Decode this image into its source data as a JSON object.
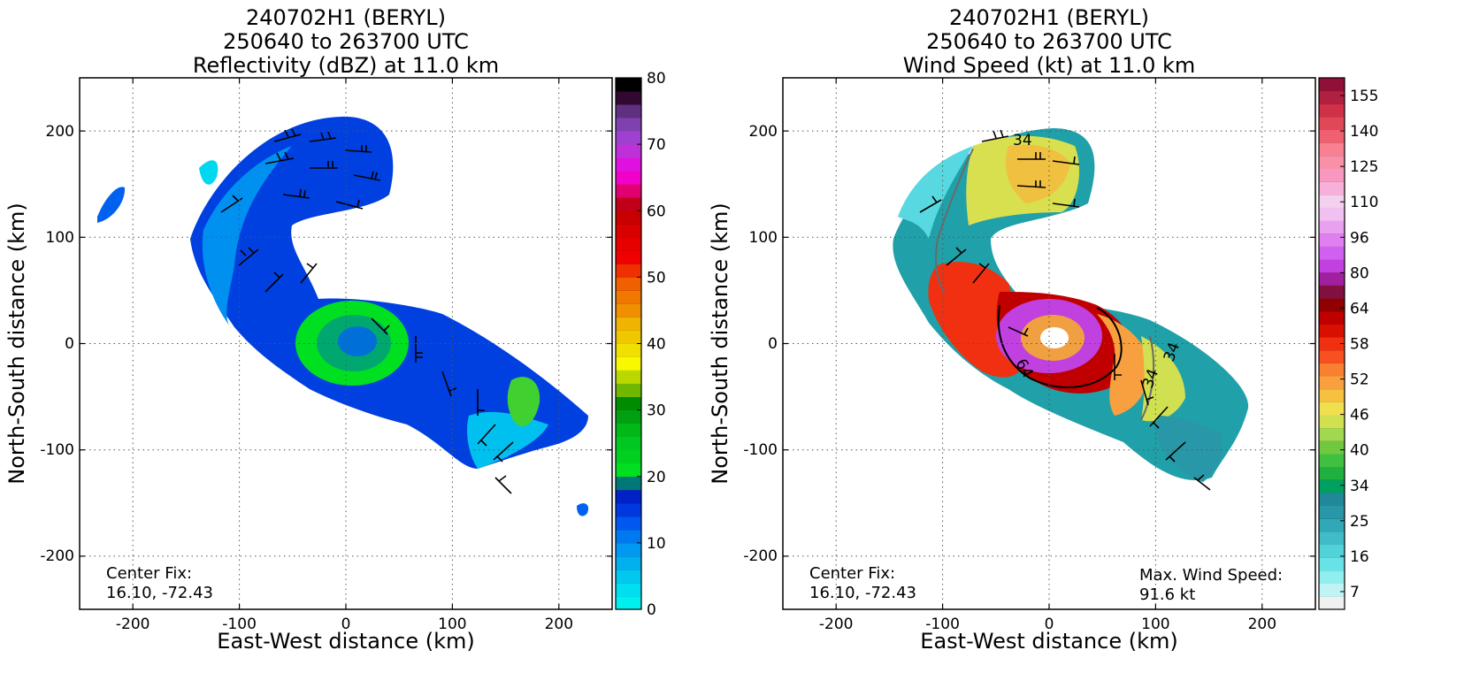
{
  "chart_data": [
    {
      "type": "heatmap",
      "title_lines": [
        "240702H1 (BERYL)",
        "250640 to 263700 UTC",
        "Reflectivity (dBZ) at 11.0 km"
      ],
      "xlabel": "East-West distance (km)",
      "ylabel": "North-South distance (km)",
      "xlim": [
        -250,
        250
      ],
      "ylim": [
        -250,
        250
      ],
      "xticks": [
        -200,
        -100,
        0,
        100,
        200
      ],
      "yticks": [
        -200,
        -100,
        0,
        100,
        200
      ],
      "grid": true,
      "colorbar": {
        "min": 0,
        "max": 80,
        "ticks": [
          0,
          10,
          20,
          30,
          40,
          50,
          60,
          70,
          80
        ],
        "colors": [
          "#00efef",
          "#00dfef",
          "#00c8ef",
          "#00b0ef",
          "#0098f0",
          "#0079f0",
          "#0058f0",
          "#0038e0",
          "#0020c8",
          "#007878",
          "#00e020",
          "#00d020",
          "#00c820",
          "#00b818",
          "#00a010",
          "#008c00",
          "#70b800",
          "#b8d800",
          "#f8f800",
          "#f0e000",
          "#f0c800",
          "#f0b400",
          "#f09000",
          "#f07800",
          "#f06000",
          "#f03000",
          "#f00000",
          "#e80000",
          "#d80000",
          "#c80000",
          "#c00018",
          "#e00070",
          "#f000c8",
          "#e010e0",
          "#c030d8",
          "#a040d0",
          "#8040b0",
          "#603080",
          "#300830",
          "#000000"
        ]
      },
      "annotation": {
        "label": "Center Fix:",
        "value": "16.10, -72.43"
      }
    },
    {
      "type": "heatmap",
      "title_lines": [
        "240702H1 (BERYL)",
        "250640 to 263700 UTC",
        "Wind Speed (kt) at 11.0 km"
      ],
      "xlabel": "East-West distance (km)",
      "ylabel": "North-South distance (km)",
      "xlim": [
        -250,
        250
      ],
      "ylim": [
        -250,
        250
      ],
      "xticks": [
        -200,
        -100,
        0,
        100,
        200
      ],
      "yticks": [
        -200,
        -100,
        0,
        100,
        200
      ],
      "grid": true,
      "contour_labels": [
        "34",
        "64"
      ],
      "colorbar": {
        "ticks": [
          "7",
          "16",
          "25",
          "34",
          "40",
          "46",
          "52",
          "58",
          "64",
          "80",
          "96",
          "110",
          "125",
          "140",
          "155"
        ],
        "colors": [
          "#f0f0f0",
          "#c0f4f4",
          "#90eeee",
          "#68e2e6",
          "#50d2d8",
          "#40bcc8",
          "#30a8b8",
          "#2898a8",
          "#208898",
          "#00a060",
          "#20b040",
          "#40c040",
          "#70c840",
          "#a0d850",
          "#d0e050",
          "#f0e050",
          "#f8c040",
          "#f8a040",
          "#f88030",
          "#f85020",
          "#f03010",
          "#d81000",
          "#c00000",
          "#900000",
          "#801040",
          "#a020a0",
          "#c040e0",
          "#d060f0",
          "#e080f0",
          "#e8a0f0",
          "#f0c0f0",
          "#f4d0f0",
          "#f8b0d8",
          "#f898c0",
          "#f890a8",
          "#f88090",
          "#f06070",
          "#e04858",
          "#d03048",
          "#b02040",
          "#901038"
        ]
      },
      "annotation": {
        "label": "Center Fix:",
        "value": "16.10, -72.43"
      },
      "annotation2": {
        "label": "Max. Wind Speed:",
        "value": "91.6 kt"
      }
    }
  ]
}
